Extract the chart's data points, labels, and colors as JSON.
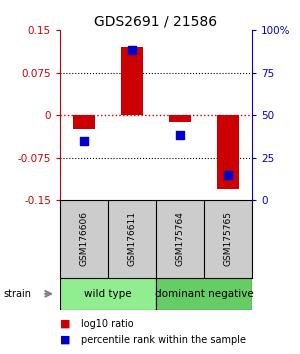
{
  "title": "GDS2691 / 21586",
  "samples": [
    "GSM176606",
    "GSM176611",
    "GSM175764",
    "GSM175765"
  ],
  "log10_ratio": [
    -0.025,
    0.12,
    -0.012,
    -0.13
  ],
  "percentile_rank": [
    35,
    88,
    38,
    15
  ],
  "groups": [
    {
      "label": "wild type",
      "samples": [
        0,
        1
      ],
      "color": "#90ee90"
    },
    {
      "label": "dominant negative",
      "samples": [
        2,
        3
      ],
      "color": "#66cc66"
    }
  ],
  "group_label": "strain",
  "ylim_left": [
    -0.15,
    0.15
  ],
  "ylim_right": [
    0,
    100
  ],
  "yticks_left": [
    -0.15,
    -0.075,
    0,
    0.075,
    0.15
  ],
  "yticks_right": [
    0,
    25,
    50,
    75,
    100
  ],
  "bar_color": "#cc0000",
  "dot_color": "#0000cc",
  "hline_color": "#cc0000",
  "background_color": "#ffffff",
  "title_fontsize": 10,
  "tick_fontsize": 7.5,
  "sample_fontsize": 6.5,
  "group_fontsize": 7.5,
  "legend_fontsize": 7
}
